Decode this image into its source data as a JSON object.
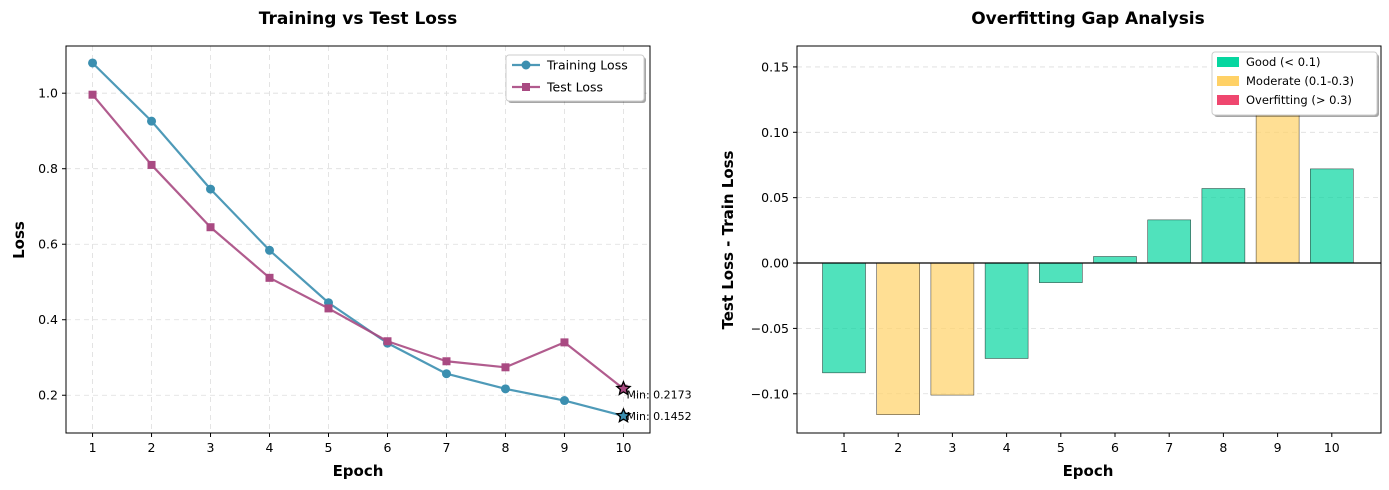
{
  "chart_data": [
    {
      "type": "line",
      "title": "Training vs Test Loss",
      "xlabel": "Epoch",
      "ylabel": "Loss",
      "x": [
        1,
        2,
        3,
        4,
        5,
        6,
        7,
        8,
        9,
        10
      ],
      "xlim": [
        0.55,
        10.45
      ],
      "ylim": [
        0.1,
        1.125
      ],
      "yticks": [
        "0.2",
        "0.4",
        "0.6",
        "0.8",
        "1.0"
      ],
      "yticks_values": [
        0.2,
        0.4,
        0.6,
        0.8,
        1.0
      ],
      "grid": true,
      "legend_position": "top-right",
      "series": [
        {
          "name": "Training Loss",
          "color": "#3b8fb0",
          "marker": "circle",
          "values": [
            1.08,
            0.926,
            0.746,
            0.584,
            0.445,
            0.338,
            0.257,
            0.217,
            0.186,
            0.1452
          ]
        },
        {
          "name": "Test Loss",
          "color": "#a94a82",
          "marker": "square",
          "values": [
            0.996,
            0.81,
            0.645,
            0.511,
            0.43,
            0.343,
            0.29,
            0.274,
            0.34,
            0.2173
          ]
        }
      ],
      "annotations": [
        {
          "text": "Min: 0.2173",
          "x": 10,
          "y": 0.2173,
          "series": "Test Loss"
        },
        {
          "text": "Min: 0.1452",
          "x": 10,
          "y": 0.1452,
          "series": "Training Loss"
        }
      ]
    },
    {
      "type": "bar",
      "title": "Overfitting Gap Analysis",
      "xlabel": "Epoch",
      "ylabel": "Test Loss - Train Loss",
      "categories": [
        "1",
        "2",
        "3",
        "4",
        "5",
        "6",
        "7",
        "8",
        "9",
        "10"
      ],
      "values": [
        -0.084,
        -0.116,
        -0.101,
        -0.073,
        -0.015,
        0.005,
        0.033,
        0.057,
        0.154,
        0.072
      ],
      "ylim": [
        -0.13,
        0.166
      ],
      "yticks": [
        "−0.10",
        "−0.05",
        "0.00",
        "0.05",
        "0.10",
        "0.15"
      ],
      "yticks_values": [
        -0.1,
        -0.05,
        0.0,
        0.05,
        0.1,
        0.15
      ],
      "grid": true,
      "legend_position": "top-right",
      "legend": [
        {
          "label": "Good (< 0.1)",
          "color": "#06d6a0"
        },
        {
          "label": "Moderate (0.1-0.3)",
          "color": "#ffd166"
        },
        {
          "label": "Overfitting (> 0.3)",
          "color": "#ef476f"
        }
      ]
    }
  ]
}
